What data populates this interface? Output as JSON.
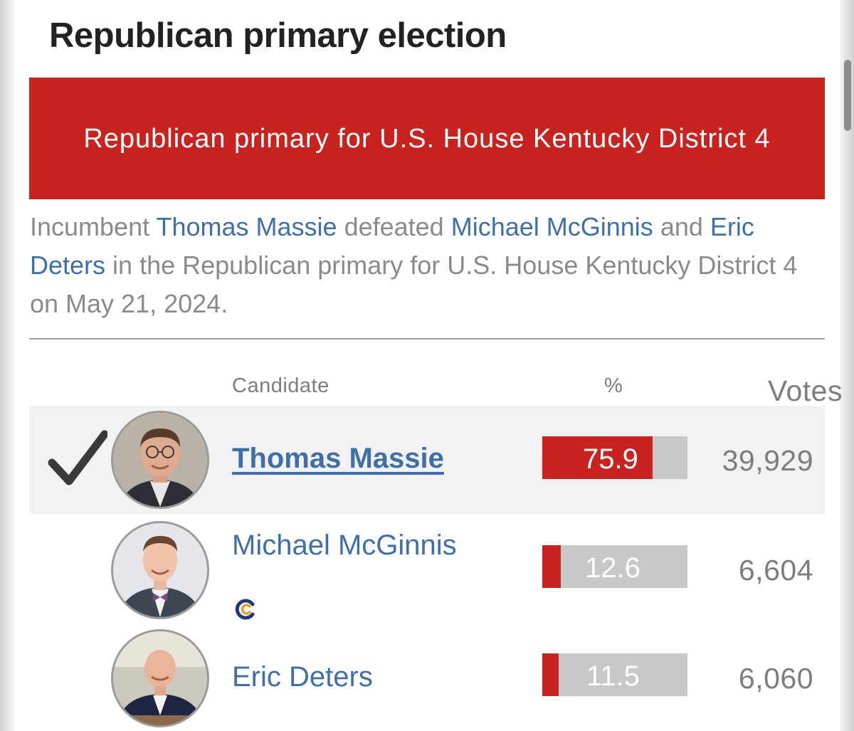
{
  "heading": "Republican primary election",
  "race_title": "Republican primary for U.S. House Kentucky District 4",
  "summary": {
    "prefix": "Incumbent",
    "winner_link": "Thomas Massie",
    "defeated_text": "defeated",
    "opponent1_link": "Michael McGinnis",
    "and_text": "and",
    "opponent2_link": "Eric Deters",
    "suffix": "in the Republican primary for U.S. House Kentucky District 4 on May 21, 2024."
  },
  "table": {
    "headers": {
      "candidate": "Candidate",
      "percent": "%",
      "votes": "Votes"
    },
    "rows": [
      {
        "name": "Thomas Massie",
        "percent": "75.9",
        "percent_value": 75.9,
        "votes": "39,929",
        "winner": true,
        "icon": "checkmark-icon"
      },
      {
        "name": "Michael McGinnis",
        "percent": "12.6",
        "percent_value": 12.6,
        "votes": "6,604",
        "winner": false,
        "icon": "constitution-party-icon"
      },
      {
        "name": "Eric Deters",
        "percent": "11.5",
        "percent_value": 11.5,
        "votes": "6,060",
        "winner": false
      }
    ]
  },
  "colors": {
    "republican_red": "#c8231e",
    "link_blue": "#3f6fa9",
    "bar_gray": "#c8c8c8"
  }
}
